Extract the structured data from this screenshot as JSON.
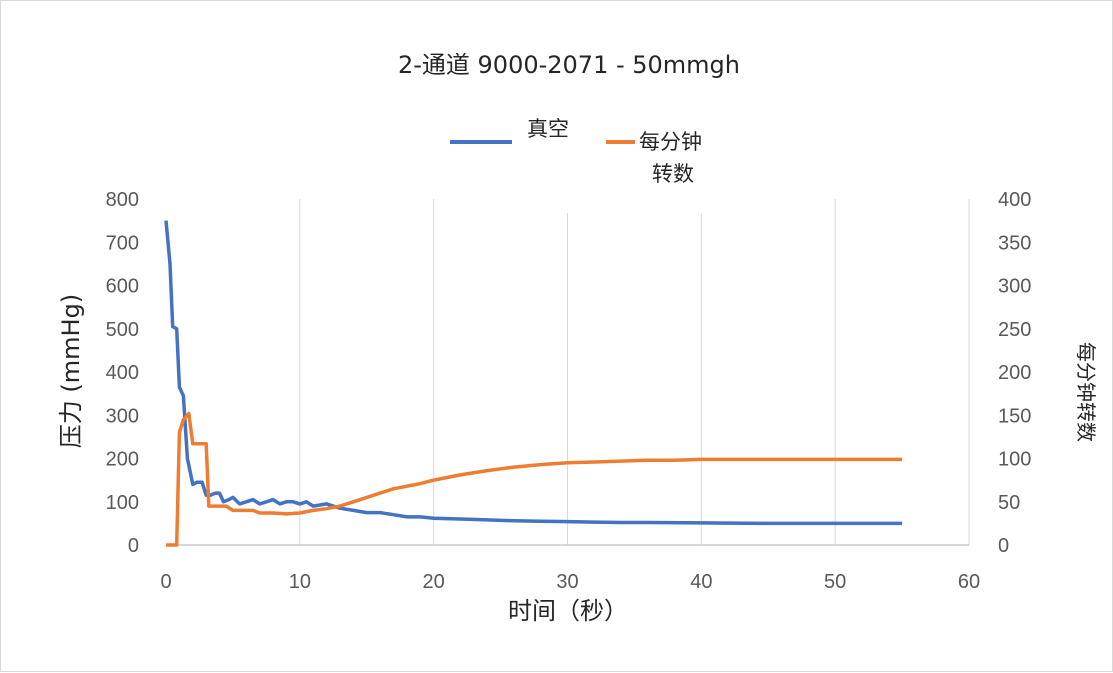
{
  "colors": {
    "vacuum": "#4472C4",
    "rpm": "#ED7D31",
    "grid": "#d9d9d9",
    "axis": "#bfbfbf",
    "text": "#262626",
    "tick": "#595959"
  },
  "chart_data": {
    "type": "line",
    "title": "2-通道 9000-2071 - 50mmgh",
    "xlabel": "时间（秒）",
    "ylabel": "压力 (mmHg)",
    "y2label": "每分钟转数",
    "xlim": [
      0,
      60
    ],
    "ylim": [
      0,
      800
    ],
    "y2lim": [
      0,
      400
    ],
    "x_ticks": [
      "0",
      "10",
      "20",
      "30",
      "40",
      "50",
      "60"
    ],
    "y_ticks": [
      "0",
      "100",
      "200",
      "300",
      "400",
      "500",
      "600",
      "700",
      "800"
    ],
    "y2_ticks": [
      "0",
      "50",
      "100",
      "150",
      "200",
      "250",
      "300",
      "350",
      "400"
    ],
    "grid": "vertical",
    "legend_position": "top",
    "legend": {
      "vacuum": "真空",
      "rpm_line1": "每分钟",
      "rpm_line2": "转数"
    },
    "series": [
      {
        "name": "真空",
        "axis": "left",
        "x": [
          0,
          0.3,
          0.5,
          0.8,
          1.0,
          1.3,
          1.6,
          2.0,
          2.3,
          2.7,
          3.0,
          3.3,
          3.7,
          4.0,
          4.3,
          4.7,
          5.0,
          5.5,
          6.0,
          6.5,
          7.0,
          7.5,
          8.0,
          8.5,
          9.0,
          9.5,
          10.0,
          10.5,
          11.0,
          12.0,
          13.0,
          14.0,
          15.0,
          16.0,
          17.0,
          18.0,
          19.0,
          20.0,
          22.0,
          24.0,
          26.0,
          28.0,
          30.0,
          32.0,
          34.0,
          36.0,
          40.0,
          45.0,
          50.0,
          55.0
        ],
        "values": [
          750,
          650,
          505,
          500,
          365,
          345,
          200,
          140,
          145,
          145,
          115,
          115,
          120,
          120,
          100,
          105,
          110,
          95,
          100,
          105,
          95,
          100,
          105,
          95,
          100,
          100,
          95,
          100,
          90,
          95,
          85,
          80,
          75,
          75,
          70,
          65,
          65,
          62,
          60,
          58,
          56,
          55,
          54,
          53,
          52,
          52,
          51,
          50,
          50,
          50
        ]
      },
      {
        "name": "每分钟转数",
        "axis": "right",
        "x": [
          0,
          0.5,
          0.8,
          1.0,
          1.3,
          1.7,
          2.0,
          2.5,
          3.0,
          3.2,
          4.0,
          4.5,
          5.0,
          6.0,
          6.5,
          7.0,
          8.0,
          9.0,
          10.0,
          11.0,
          12.0,
          13.0,
          14.0,
          15.0,
          16.0,
          17.0,
          18.0,
          19.0,
          20.0,
          22.0,
          24.0,
          26.0,
          28.0,
          30.0,
          32.0,
          34.0,
          36.0,
          38.0,
          40.0,
          44.0,
          48.0,
          52.0,
          55.0
        ],
        "values": [
          0,
          0,
          0,
          130,
          145,
          152,
          117,
          117,
          117,
          45,
          45,
          45,
          40,
          40,
          40,
          37,
          37,
          36,
          37,
          40,
          42,
          45,
          50,
          55,
          60,
          65,
          68,
          71,
          75,
          81,
          86,
          90,
          93,
          95,
          96,
          97,
          98,
          98,
          99,
          99,
          99,
          99,
          99
        ]
      }
    ]
  }
}
